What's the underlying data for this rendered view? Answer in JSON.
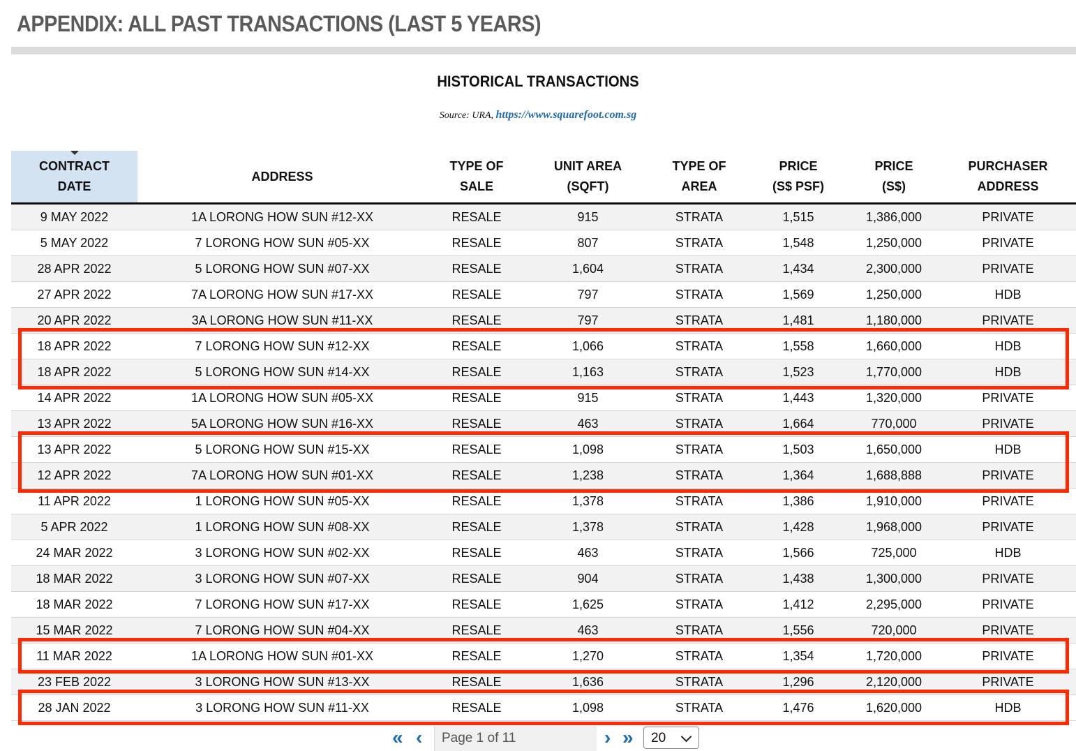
{
  "page": {
    "title": "APPENDIX: ALL PAST TRANSACTIONS (LAST 5 YEARS)",
    "table_title": "HISTORICAL TRANSACTIONS",
    "source_prefix": "Source: URA, ",
    "source_link": "https://www.squarefoot.com.sg"
  },
  "table": {
    "headers": [
      [
        "CONTRACT",
        "DATE"
      ],
      [
        "ADDRESS"
      ],
      [
        "TYPE OF",
        "SALE"
      ],
      [
        "UNIT AREA",
        "(SQFT)"
      ],
      [
        "TYPE OF",
        "AREA"
      ],
      [
        "PRICE",
        "(S$ PSF)"
      ],
      [
        "PRICE",
        "(S$)"
      ],
      [
        "PURCHASER",
        "ADDRESS"
      ]
    ],
    "sorted_column": 0,
    "highlight_color": "#ff2a00",
    "highlighted_groups": [
      [
        5,
        6
      ],
      [
        9,
        10
      ],
      [
        17
      ],
      [
        19
      ]
    ],
    "rows": [
      [
        "9 MAY 2022",
        "1A LORONG HOW SUN #12-XX",
        "RESALE",
        "915",
        "STRATA",
        "1,515",
        "1,386,000",
        "PRIVATE"
      ],
      [
        "5 MAY 2022",
        "7 LORONG HOW SUN #05-XX",
        "RESALE",
        "807",
        "STRATA",
        "1,548",
        "1,250,000",
        "PRIVATE"
      ],
      [
        "28 APR 2022",
        "5 LORONG HOW SUN #07-XX",
        "RESALE",
        "1,604",
        "STRATA",
        "1,434",
        "2,300,000",
        "PRIVATE"
      ],
      [
        "27 APR 2022",
        "7A LORONG HOW SUN #17-XX",
        "RESALE",
        "797",
        "STRATA",
        "1,569",
        "1,250,000",
        "HDB"
      ],
      [
        "20 APR 2022",
        "3A LORONG HOW SUN #11-XX",
        "RESALE",
        "797",
        "STRATA",
        "1,481",
        "1,180,000",
        "PRIVATE"
      ],
      [
        "18 APR 2022",
        "7 LORONG HOW SUN #12-XX",
        "RESALE",
        "1,066",
        "STRATA",
        "1,558",
        "1,660,000",
        "HDB"
      ],
      [
        "18 APR 2022",
        "5 LORONG HOW SUN #14-XX",
        "RESALE",
        "1,163",
        "STRATA",
        "1,523",
        "1,770,000",
        "HDB"
      ],
      [
        "14 APR 2022",
        "1A LORONG HOW SUN #05-XX",
        "RESALE",
        "915",
        "STRATA",
        "1,443",
        "1,320,000",
        "PRIVATE"
      ],
      [
        "13 APR 2022",
        "5A LORONG HOW SUN #16-XX",
        "RESALE",
        "463",
        "STRATA",
        "1,664",
        "770,000",
        "PRIVATE"
      ],
      [
        "13 APR 2022",
        "5 LORONG HOW SUN #15-XX",
        "RESALE",
        "1,098",
        "STRATA",
        "1,503",
        "1,650,000",
        "HDB"
      ],
      [
        "12 APR 2022",
        "7A LORONG HOW SUN #01-XX",
        "RESALE",
        "1,238",
        "STRATA",
        "1,364",
        "1,688,888",
        "PRIVATE"
      ],
      [
        "11 APR 2022",
        "1 LORONG HOW SUN #05-XX",
        "RESALE",
        "1,378",
        "STRATA",
        "1,386",
        "1,910,000",
        "PRIVATE"
      ],
      [
        "5 APR 2022",
        "1 LORONG HOW SUN #08-XX",
        "RESALE",
        "1,378",
        "STRATA",
        "1,428",
        "1,968,000",
        "PRIVATE"
      ],
      [
        "24 MAR 2022",
        "3 LORONG HOW SUN #02-XX",
        "RESALE",
        "463",
        "STRATA",
        "1,566",
        "725,000",
        "HDB"
      ],
      [
        "18 MAR 2022",
        "3 LORONG HOW SUN #07-XX",
        "RESALE",
        "904",
        "STRATA",
        "1,438",
        "1,300,000",
        "PRIVATE"
      ],
      [
        "18 MAR 2022",
        "7 LORONG HOW SUN #17-XX",
        "RESALE",
        "1,625",
        "STRATA",
        "1,412",
        "2,295,000",
        "PRIVATE"
      ],
      [
        "15 MAR 2022",
        "7 LORONG HOW SUN #04-XX",
        "RESALE",
        "463",
        "STRATA",
        "1,556",
        "720,000",
        "PRIVATE"
      ],
      [
        "11 MAR 2022",
        "1A LORONG HOW SUN #01-XX",
        "RESALE",
        "1,270",
        "STRATA",
        "1,354",
        "1,720,000",
        "PRIVATE"
      ],
      [
        "23 FEB 2022",
        "3 LORONG HOW SUN #13-XX",
        "RESALE",
        "1,636",
        "STRATA",
        "1,296",
        "2,120,000",
        "PRIVATE"
      ],
      [
        "28 JAN 2022",
        "3 LORONG HOW SUN #11-XX",
        "RESALE",
        "1,098",
        "STRATA",
        "1,476",
        "1,620,000",
        "HDB"
      ]
    ]
  },
  "pagination": {
    "first_icon": "double-chevron-left-icon",
    "prev_icon": "chevron-left-icon",
    "next_icon": "chevron-right-icon",
    "last_icon": "double-chevron-right-icon",
    "page_text": "Page 1 of 11",
    "page_size": "20"
  }
}
